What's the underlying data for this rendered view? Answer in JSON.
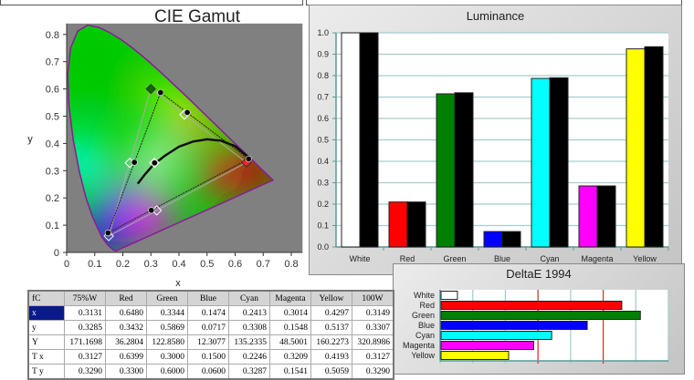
{
  "chart_data": [
    {
      "type": "scatter",
      "title": "CIE Gamut",
      "xlabel": "x",
      "ylabel": "y",
      "xlim": [
        0,
        0.84
      ],
      "ylim": [
        0,
        0.84
      ],
      "xticks": [
        "0",
        "0.1",
        "0.2",
        "0.3",
        "0.4",
        "0.5",
        "0.6",
        "0.7",
        "0.8"
      ],
      "yticks": [
        "0",
        "0.1",
        "0.2",
        "0.3",
        "0.4",
        "0.5",
        "0.6",
        "0.7",
        "0.8"
      ],
      "background_color": "#808080",
      "measured": [
        {
          "label": "Red",
          "x": 0.648,
          "y": 0.3432
        },
        {
          "label": "Green",
          "x": 0.3344,
          "y": 0.5869
        },
        {
          "label": "Blue",
          "x": 0.1474,
          "y": 0.0717
        },
        {
          "label": "Cyan",
          "x": 0.2413,
          "y": 0.3308
        },
        {
          "label": "Magenta",
          "x": 0.3014,
          "y": 0.1548
        },
        {
          "label": "Yellow",
          "x": 0.4297,
          "y": 0.5137
        },
        {
          "label": "White",
          "x": 0.3131,
          "y": 0.3285
        }
      ],
      "target": [
        {
          "label": "Red",
          "x": 0.64,
          "y": 0.33,
          "color": "#ff2020"
        },
        {
          "label": "Green",
          "x": 0.3,
          "y": 0.6,
          "color": "#0a6a0a"
        },
        {
          "label": "Blue",
          "x": 0.15,
          "y": 0.06,
          "color": "none"
        },
        {
          "label": "Cyan",
          "x": 0.2246,
          "y": 0.3287,
          "color": "none"
        },
        {
          "label": "Magenta",
          "x": 0.3209,
          "y": 0.1541,
          "color": "none"
        },
        {
          "label": "Yellow",
          "x": 0.4193,
          "y": 0.5059,
          "color": "none"
        },
        {
          "label": "White",
          "x": 0.3127,
          "y": 0.329,
          "color": "none"
        }
      ],
      "planckian": [
        [
          0.253,
          0.252
        ],
        [
          0.28,
          0.288
        ],
        [
          0.31,
          0.323
        ],
        [
          0.35,
          0.355
        ],
        [
          0.4,
          0.388
        ],
        [
          0.45,
          0.407
        ],
        [
          0.5,
          0.415
        ],
        [
          0.55,
          0.41
        ],
        [
          0.6,
          0.39
        ],
        [
          0.647,
          0.35
        ]
      ],
      "locus": [
        [
          0.1741,
          0.005
        ],
        [
          0.1666,
          0.0089
        ],
        [
          0.144,
          0.0297
        ],
        [
          0.1241,
          0.0578
        ],
        [
          0.0913,
          0.1327
        ],
        [
          0.0687,
          0.2007
        ],
        [
          0.0454,
          0.295
        ],
        [
          0.0235,
          0.4127
        ],
        [
          0.0082,
          0.5384
        ],
        [
          0.0039,
          0.6548
        ],
        [
          0.0139,
          0.7502
        ],
        [
          0.0389,
          0.812
        ],
        [
          0.0743,
          0.8338
        ],
        [
          0.1142,
          0.8262
        ],
        [
          0.1547,
          0.8059
        ],
        [
          0.1929,
          0.7816
        ],
        [
          0.2296,
          0.7543
        ],
        [
          0.2658,
          0.7243
        ],
        [
          0.3016,
          0.6923
        ],
        [
          0.3373,
          0.6589
        ],
        [
          0.3731,
          0.6245
        ],
        [
          0.4087,
          0.5896
        ],
        [
          0.4441,
          0.5547
        ],
        [
          0.4788,
          0.5202
        ],
        [
          0.5125,
          0.4866
        ],
        [
          0.5448,
          0.4544
        ],
        [
          0.5752,
          0.4242
        ],
        [
          0.6029,
          0.3965
        ],
        [
          0.627,
          0.3725
        ],
        [
          0.6482,
          0.3514
        ],
        [
          0.6658,
          0.334
        ],
        [
          0.6801,
          0.3197
        ],
        [
          0.6915,
          0.3083
        ],
        [
          0.7006,
          0.2993
        ],
        [
          0.7079,
          0.292
        ],
        [
          0.7347,
          0.2653
        ]
      ]
    },
    {
      "type": "bar",
      "title": "Luminance",
      "categories": [
        "White",
        "Red",
        "Green",
        "Blue",
        "Cyan",
        "Magenta",
        "Yellow"
      ],
      "ylim": [
        0,
        1.0
      ],
      "yticks": [
        "0.0",
        "0.1",
        "0.2",
        "0.3",
        "0.4",
        "0.5",
        "0.6",
        "0.7",
        "0.8",
        "0.9",
        "1.0"
      ],
      "grid": true,
      "colors": [
        "#ffffff",
        "#ff0000",
        "#008000",
        "#0000ff",
        "#00ffff",
        "#ff00ff",
        "#ffff00"
      ],
      "series": [
        {
          "values": [
            1.0,
            0.21,
            0.715,
            0.072,
            0.787,
            0.285,
            0.925
          ]
        },
        {
          "values": [
            1.0,
            0.21,
            0.72,
            0.072,
            0.79,
            0.285,
            0.935
          ],
          "color": "#000000"
        }
      ]
    },
    {
      "type": "bar",
      "orientation": "horizontal",
      "title": "DeltaE 1994",
      "categories": [
        "White",
        "Red",
        "Green",
        "Blue",
        "Cyan",
        "Magenta",
        "Yellow"
      ],
      "values": [
        0.53,
        5.57,
        6.14,
        4.51,
        3.42,
        2.87,
        2.1
      ],
      "colors": [
        "#ffffff",
        "#ff0000",
        "#008000",
        "#0000ff",
        "#00ffff",
        "#ff00ff",
        "#ffff00"
      ],
      "xlim": [
        0,
        7
      ],
      "threshold_lines": [
        3,
        5
      ],
      "threshold_color": "#e03030",
      "grid": true
    }
  ],
  "table": {
    "corner": "fC",
    "columns": [
      "75%W",
      "Red",
      "Green",
      "Blue",
      "Cyan",
      "Magenta",
      "Yellow",
      "100W"
    ],
    "rows": [
      {
        "label": "x",
        "values": [
          "0.3131",
          "0.6480",
          "0.3344",
          "0.1474",
          "0.2413",
          "0.3014",
          "0.4297",
          "0.3149"
        ]
      },
      {
        "label": "y",
        "values": [
          "0.3285",
          "0.3432",
          "0.5869",
          "0.0717",
          "0.3308",
          "0.1548",
          "0.5137",
          "0.3307"
        ]
      },
      {
        "label": "Y",
        "values": [
          "171.1698",
          "36.2804",
          "122.8580",
          "12.3077",
          "135.2335",
          "48.5001",
          "160.2273",
          "320.8986"
        ]
      },
      {
        "label": "T x",
        "values": [
          "0.3127",
          "0.6399",
          "0.3000",
          "0.1500",
          "0.2246",
          "0.3209",
          "0.4193",
          "0.3127"
        ]
      },
      {
        "label": "T y",
        "values": [
          "0.3290",
          "0.3300",
          "0.6000",
          "0.0600",
          "0.3287",
          "0.1541",
          "0.5059",
          "0.3290"
        ]
      }
    ]
  }
}
